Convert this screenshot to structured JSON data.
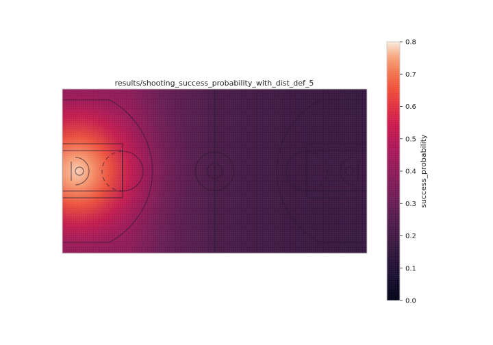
{
  "chart_data": {
    "type": "heatmap",
    "title": "results/shooting_success_probability_with_dist_def_5",
    "xlabel": "",
    "ylabel": "",
    "colormap": "rocket",
    "colorbar": {
      "label": "success_probability",
      "range": [
        0.0,
        0.8
      ],
      "ticks": [
        "0.0",
        "0.1",
        "0.2",
        "0.3",
        "0.4",
        "0.5",
        "0.6",
        "0.7",
        "0.8"
      ]
    },
    "grid": false,
    "x_range": [
      0,
      94
    ],
    "y_range": [
      0,
      50
    ],
    "overlay": "basketball court lines (full court, two baskets)",
    "field_points": [
      {
        "x": 5,
        "y": 25,
        "value": 0.75
      },
      {
        "x": 10,
        "y": 25,
        "value": 0.7
      },
      {
        "x": 15,
        "y": 25,
        "value": 0.52
      },
      {
        "x": 20,
        "y": 25,
        "value": 0.4
      },
      {
        "x": 30,
        "y": 25,
        "value": 0.3
      },
      {
        "x": 47,
        "y": 25,
        "value": 0.22
      },
      {
        "x": 60,
        "y": 25,
        "value": 0.2
      },
      {
        "x": 75,
        "y": 25,
        "value": 0.18
      },
      {
        "x": 89,
        "y": 25,
        "value": 0.17
      },
      {
        "x": 2,
        "y": 48,
        "value": 0.38
      },
      {
        "x": 47,
        "y": 48,
        "value": 0.22
      },
      {
        "x": 90,
        "y": 48,
        "value": 0.17
      }
    ]
  }
}
